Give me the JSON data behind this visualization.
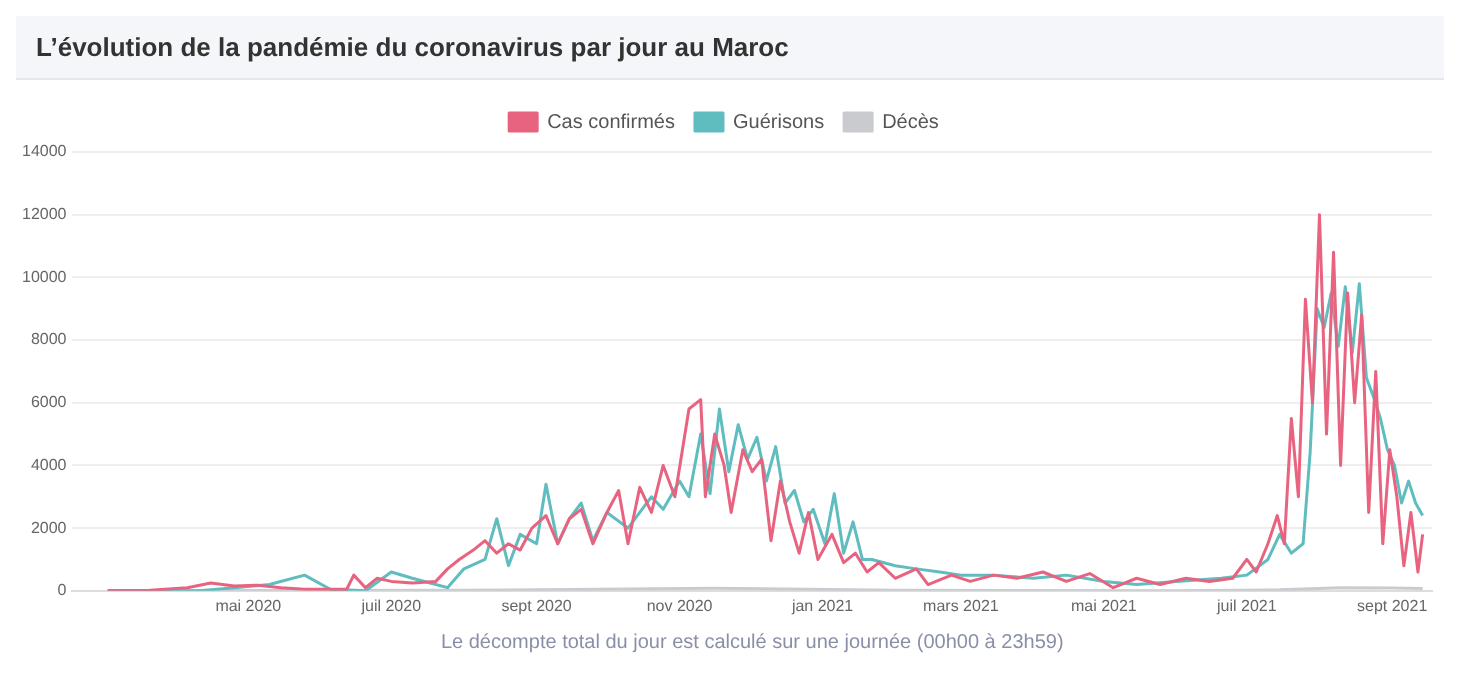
{
  "chart_data": {
    "type": "line",
    "title": "L’évolution de la pandémie du coronavirus par jour au Maroc",
    "xlabel": "Le décompte total du jour est calculé sur une journée (00h00 à 23h59)",
    "xlim": [
      "2020-02-16",
      "2021-09-18"
    ],
    "xticks": [
      {
        "value": "2020-05-01",
        "label": "mai 2020"
      },
      {
        "value": "2020-07-01",
        "label": "juil 2020"
      },
      {
        "value": "2020-09-01",
        "label": "sept 2020"
      },
      {
        "value": "2020-11-01",
        "label": "nov 2020"
      },
      {
        "value": "2021-01-01",
        "label": "jan 2021"
      },
      {
        "value": "2021-03-01",
        "label": "mars 2021"
      },
      {
        "value": "2021-05-01",
        "label": "mai 2021"
      },
      {
        "value": "2021-07-01",
        "label": "juil 2021"
      },
      {
        "value": "2021-09-01",
        "label": "sept 2021"
      }
    ],
    "ylim": [
      0,
      14000
    ],
    "yticks": [
      0,
      2000,
      4000,
      6000,
      8000,
      10000,
      12000,
      14000
    ],
    "grid": "y",
    "legend": "top",
    "marker": "none",
    "line_style": "solid",
    "series": [
      {
        "name": "Cas confirmés",
        "color": "#e8637f",
        "x": [
          "2020-03-02",
          "2020-03-20",
          "2020-04-05",
          "2020-04-15",
          "2020-04-25",
          "2020-05-05",
          "2020-05-15",
          "2020-05-25",
          "2020-06-05",
          "2020-06-12",
          "2020-06-15",
          "2020-06-20",
          "2020-06-25",
          "2020-07-01",
          "2020-07-10",
          "2020-07-20",
          "2020-07-25",
          "2020-07-30",
          "2020-08-05",
          "2020-08-10",
          "2020-08-15",
          "2020-08-20",
          "2020-08-25",
          "2020-08-30",
          "2020-09-05",
          "2020-09-10",
          "2020-09-15",
          "2020-09-20",
          "2020-09-25",
          "2020-10-01",
          "2020-10-06",
          "2020-10-10",
          "2020-10-15",
          "2020-10-20",
          "2020-10-25",
          "2020-10-30",
          "2020-11-05",
          "2020-11-10",
          "2020-11-12",
          "2020-11-16",
          "2020-11-20",
          "2020-11-23",
          "2020-11-28",
          "2020-12-02",
          "2020-12-06",
          "2020-12-10",
          "2020-12-14",
          "2020-12-18",
          "2020-12-22",
          "2020-12-26",
          "2020-12-30",
          "2021-01-05",
          "2021-01-10",
          "2021-01-15",
          "2021-01-20",
          "2021-01-25",
          "2021-02-01",
          "2021-02-10",
          "2021-02-15",
          "2021-02-25",
          "2021-03-05",
          "2021-03-15",
          "2021-03-25",
          "2021-04-05",
          "2021-04-15",
          "2021-04-25",
          "2021-05-05",
          "2021-05-15",
          "2021-05-25",
          "2021-06-05",
          "2021-06-15",
          "2021-06-25",
          "2021-07-01",
          "2021-07-05",
          "2021-07-10",
          "2021-07-14",
          "2021-07-17",
          "2021-07-20",
          "2021-07-23",
          "2021-07-26",
          "2021-07-29",
          "2021-08-01",
          "2021-08-04",
          "2021-08-07",
          "2021-08-10",
          "2021-08-13",
          "2021-08-16",
          "2021-08-19",
          "2021-08-22",
          "2021-08-25",
          "2021-08-28",
          "2021-08-31",
          "2021-09-03",
          "2021-09-06",
          "2021-09-09",
          "2021-09-12",
          "2021-09-14"
        ],
        "values": [
          0,
          20,
          100,
          250,
          150,
          180,
          100,
          50,
          50,
          50,
          500,
          100,
          400,
          300,
          250,
          300,
          700,
          1000,
          1300,
          1600,
          1200,
          1500,
          1300,
          2000,
          2400,
          1500,
          2300,
          2600,
          1500,
          2500,
          3200,
          1500,
          3300,
          2500,
          4000,
          3000,
          5800,
          6100,
          3000,
          5000,
          4000,
          2500,
          4500,
          3800,
          4200,
          1600,
          3500,
          2200,
          1200,
          2500,
          1000,
          1800,
          900,
          1200,
          600,
          900,
          400,
          700,
          200,
          500,
          300,
          500,
          400,
          600,
          300,
          550,
          100,
          400,
          200,
          400,
          300,
          400,
          1000,
          600,
          1500,
          2400,
          1500,
          5500,
          3000,
          9300,
          6000,
          12000,
          5000,
          10800,
          4000,
          9500,
          6000,
          8800,
          2500,
          7000,
          1500,
          4500,
          3000,
          800,
          2500,
          600,
          1800
        ]
      },
      {
        "name": "Guérisons",
        "color": "#5fbcbf",
        "x": [
          "2020-03-02",
          "2020-04-10",
          "2020-04-25",
          "2020-05-10",
          "2020-05-25",
          "2020-06-05",
          "2020-06-20",
          "2020-07-01",
          "2020-07-10",
          "2020-07-20",
          "2020-07-25",
          "2020-08-01",
          "2020-08-10",
          "2020-08-15",
          "2020-08-20",
          "2020-08-25",
          "2020-09-01",
          "2020-09-05",
          "2020-09-10",
          "2020-09-15",
          "2020-09-20",
          "2020-09-25",
          "2020-10-01",
          "2020-10-10",
          "2020-10-20",
          "2020-10-25",
          "2020-11-01",
          "2020-11-05",
          "2020-11-10",
          "2020-11-14",
          "2020-11-18",
          "2020-11-22",
          "2020-11-26",
          "2020-11-30",
          "2020-12-04",
          "2020-12-08",
          "2020-12-12",
          "2020-12-16",
          "2020-12-20",
          "2020-12-24",
          "2020-12-28",
          "2021-01-02",
          "2021-01-06",
          "2021-01-10",
          "2021-01-14",
          "2021-01-18",
          "2021-01-22",
          "2021-02-01",
          "2021-02-10",
          "2021-02-20",
          "2021-03-01",
          "2021-03-15",
          "2021-04-01",
          "2021-04-15",
          "2021-05-01",
          "2021-05-15",
          "2021-06-01",
          "2021-06-20",
          "2021-07-01",
          "2021-07-10",
          "2021-07-15",
          "2021-07-20",
          "2021-07-25",
          "2021-07-28",
          "2021-07-31",
          "2021-08-03",
          "2021-08-06",
          "2021-08-09",
          "2021-08-12",
          "2021-08-15",
          "2021-08-18",
          "2021-08-21",
          "2021-08-24",
          "2021-08-27",
          "2021-08-30",
          "2021-09-02",
          "2021-09-05",
          "2021-09-08",
          "2021-09-11",
          "2021-09-14"
        ],
        "values": [
          0,
          0,
          100,
          200,
          500,
          50,
          0,
          600,
          400,
          200,
          100,
          700,
          1000,
          2300,
          800,
          1800,
          1500,
          3400,
          1500,
          2300,
          2800,
          1600,
          2500,
          2000,
          3000,
          2600,
          3500,
          3000,
          5000,
          3100,
          5800,
          3800,
          5300,
          4200,
          4900,
          3500,
          4600,
          2800,
          3200,
          2200,
          2600,
          1500,
          3100,
          1200,
          2200,
          1000,
          1000,
          800,
          700,
          600,
          500,
          500,
          400,
          500,
          300,
          200,
          300,
          400,
          500,
          1000,
          1800,
          1200,
          1500,
          4400,
          9000,
          8400,
          9500,
          7800,
          9700,
          7600,
          9800,
          6800,
          6200,
          5500,
          4500,
          4000,
          2800,
          3500,
          2800,
          2400
        ]
      },
      {
        "name": "Décès",
        "color": "#c9cbcf",
        "x": [
          "2020-03-02",
          "2020-08-01",
          "2020-09-15",
          "2020-11-15",
          "2020-12-15",
          "2021-02-01",
          "2021-06-01",
          "2021-07-15",
          "2021-08-10",
          "2021-09-01",
          "2021-09-14"
        ],
        "values": [
          0,
          20,
          40,
          80,
          60,
          20,
          0,
          30,
          100,
          90,
          70
        ]
      }
    ]
  }
}
